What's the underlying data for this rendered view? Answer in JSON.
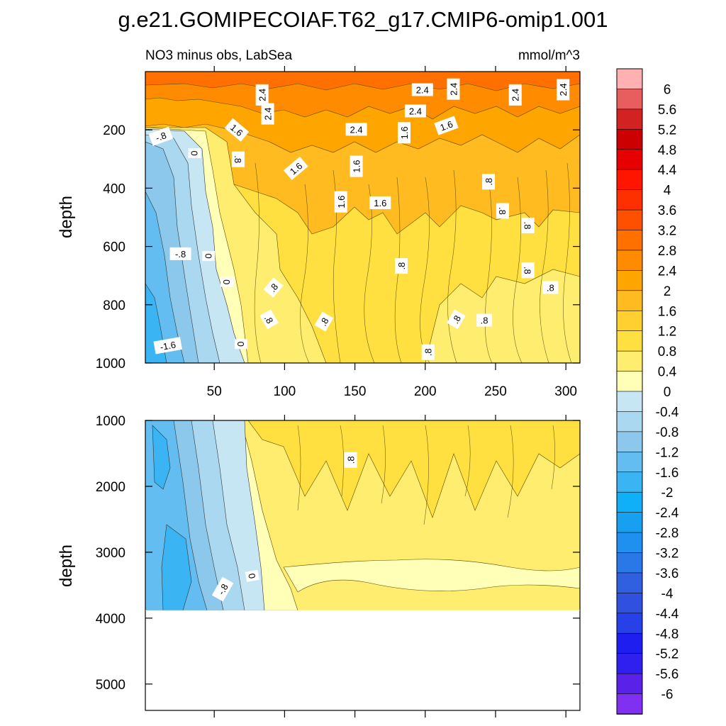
{
  "title": "g.e21.GOMIPECOIAF.T62_g17.CMIP6-omip1.001",
  "chart_data": {
    "type": "contour",
    "variable_label": "NO3 minus obs, LabSea",
    "units_label": "mmol/m^3",
    "x_ticks": [
      50,
      100,
      150,
      200,
      250,
      300
    ],
    "xlim": [
      1,
      310
    ],
    "panels": [
      {
        "id": "upper",
        "ylabel": "depth",
        "ylim": [
          0,
          1000
        ],
        "y_ticks": [
          200,
          400,
          600,
          800,
          1000
        ],
        "contour_labels": [
          {
            "text": "2.4",
            "x": 84,
            "y": 80,
            "rot": -90
          },
          {
            "text": "2.4",
            "x": 88,
            "y": 145,
            "rot": -90
          },
          {
            "text": "2.4",
            "x": 198,
            "y": 62,
            "rot": 0
          },
          {
            "text": "2.4",
            "x": 220,
            "y": 60,
            "rot": -90
          },
          {
            "text": "2.4",
            "x": 264,
            "y": 80,
            "rot": -90
          },
          {
            "text": "2.4",
            "x": 298,
            "y": 62,
            "rot": -90
          },
          {
            "text": "2.4",
            "x": 193,
            "y": 135,
            "rot": 0
          },
          {
            "text": "2.4",
            "x": 151,
            "y": 198,
            "rot": 0
          },
          {
            "text": "1.6",
            "x": 66,
            "y": 200,
            "rot": 40
          },
          {
            "text": "1.6",
            "x": 185,
            "y": 210,
            "rot": -90
          },
          {
            "text": "1.6",
            "x": 215,
            "y": 185,
            "rot": -20
          },
          {
            "text": "1.6",
            "x": 108,
            "y": 332,
            "rot": -40
          },
          {
            "text": "1.6",
            "x": 151,
            "y": 325,
            "rot": -90
          },
          {
            "text": "1.6",
            "x": 140,
            "y": 447,
            "rot": -90
          },
          {
            "text": "1.6",
            "x": 168,
            "y": 450,
            "rot": 0
          },
          {
            "text": "-.8",
            "x": 12,
            "y": 222,
            "rot": -20
          },
          {
            "text": "0",
            "x": 36,
            "y": 280,
            "rot": 90
          },
          {
            "text": ".8",
            "x": 67,
            "y": 301,
            "rot": 90
          },
          {
            "text": ".8",
            "x": 245,
            "y": 378,
            "rot": -90
          },
          {
            "text": ".8",
            "x": 255,
            "y": 478,
            "rot": 90
          },
          {
            "text": ".8",
            "x": 273,
            "y": 528,
            "rot": 90
          },
          {
            "text": "-.8",
            "x": 26,
            "y": 625,
            "rot": 0
          },
          {
            "text": "0",
            "x": 46,
            "y": 633,
            "rot": 90
          },
          {
            "text": "0",
            "x": 59,
            "y": 722,
            "rot": 90
          },
          {
            "text": ".8",
            "x": 92,
            "y": 741,
            "rot": -50
          },
          {
            "text": ".8",
            "x": 183,
            "y": 667,
            "rot": -90
          },
          {
            "text": ".8",
            "x": 273,
            "y": 682,
            "rot": 90
          },
          {
            "text": ".8",
            "x": 289,
            "y": 741,
            "rot": 0
          },
          {
            "text": ".8",
            "x": 89,
            "y": 850,
            "rot": 60
          },
          {
            "text": ".8",
            "x": 128,
            "y": 858,
            "rot": -60
          },
          {
            "text": ".8",
            "x": 222,
            "y": 850,
            "rot": -60
          },
          {
            "text": ".8",
            "x": 242,
            "y": 853,
            "rot": 0
          },
          {
            "text": "-1.6",
            "x": 17,
            "y": 940,
            "rot": -10
          },
          {
            "text": "0",
            "x": 69,
            "y": 935,
            "rot": 90
          },
          {
            "text": ".8",
            "x": 202,
            "y": 963,
            "rot": -90
          }
        ]
      },
      {
        "id": "lower",
        "ylabel": "depth",
        "ylim": [
          1000,
          5400
        ],
        "bottom_of_data": 3870,
        "y_ticks": [
          1000,
          2000,
          3000,
          4000,
          5000
        ],
        "contour_labels": [
          {
            "text": ".8",
            "x": 147,
            "y": 1600,
            "rot": -90
          },
          {
            "text": "0",
            "x": 77,
            "y": 3360,
            "rot": 80
          },
          {
            "text": "-.8",
            "x": 56,
            "y": 3560,
            "rot": -60
          }
        ]
      }
    ],
    "colorbar": {
      "levels": [
        "6",
        "5.6",
        "5.2",
        "4.8",
        "4.4",
        "4",
        "3.6",
        "3.2",
        "2.8",
        "2.4",
        "2",
        "1.6",
        "1.2",
        "0.8",
        "0.4",
        "0",
        "-0.4",
        "-0.8",
        "-1.2",
        "-1.6",
        "-2",
        "-2.4",
        "-2.8",
        "-3.2",
        "-3.6",
        "-4",
        "-4.4",
        "-4.8",
        "-5.2",
        "-5.6",
        "-6"
      ],
      "colors": [
        "#ffb0b0",
        "#e85d5d",
        "#d22222",
        "#cc0000",
        "#e60000",
        "#ff1500",
        "#ff3000",
        "#ff5000",
        "#ff7000",
        "#ff8c00",
        "#ffa500",
        "#ffbb20",
        "#ffd030",
        "#ffe040",
        "#ffed70",
        "#ffffb8",
        "#c6e6f4",
        "#a9d8f0",
        "#8cc8ec",
        "#64bdf0",
        "#3ab4f2",
        "#10b0f8",
        "#17a0f0",
        "#2090f0",
        "#2a78e8",
        "#3060e0",
        "#3050e0",
        "#2840e8",
        "#1e1ef0",
        "#3020f0",
        "#5a22e8",
        "#8030f0"
      ]
    }
  }
}
